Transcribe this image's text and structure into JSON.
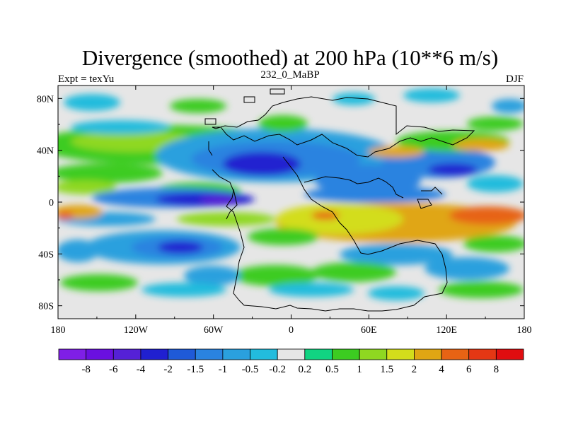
{
  "title": "Divergence (smoothed) at 200 hPa (10**6 m/s)",
  "left_label": "Expt = texYu",
  "center_label": "232_0_MaBP",
  "right_label": "DJF",
  "map": {
    "lon_range": [
      -180,
      180
    ],
    "lat_range": [
      -90,
      90
    ],
    "x_ticks": [
      {
        "value": -180,
        "label": "180"
      },
      {
        "value": -120,
        "label": "120W"
      },
      {
        "value": -60,
        "label": "60W"
      },
      {
        "value": 0,
        "label": "0"
      },
      {
        "value": 60,
        "label": "60E"
      },
      {
        "value": 120,
        "label": "120E"
      },
      {
        "value": 180,
        "label": "180"
      }
    ],
    "y_ticks": [
      {
        "value": 80,
        "label": "80N"
      },
      {
        "value": 40,
        "label": "40N"
      },
      {
        "value": 0,
        "label": "0"
      },
      {
        "value": -40,
        "label": "40S"
      },
      {
        "value": -80,
        "label": "80S"
      }
    ]
  },
  "colorbar": {
    "colors": [
      "#7f1fe6",
      "#6a10e0",
      "#5521d6",
      "#2020d0",
      "#1f5ad8",
      "#2a83e0",
      "#2aa0de",
      "#22bcdd",
      "#e6e6e6",
      "#11d482",
      "#3ccc21",
      "#8fd821",
      "#d3dd1b",
      "#e0a613",
      "#e76314",
      "#e43714",
      "#e00d10"
    ],
    "labels": [
      "-8",
      "-6",
      "-4",
      "-2",
      "-1.5",
      "-1",
      "-0.5",
      "-0.2",
      "0.2",
      "0.5",
      "1",
      "1.5",
      "2",
      "4",
      "6",
      "8"
    ]
  }
}
